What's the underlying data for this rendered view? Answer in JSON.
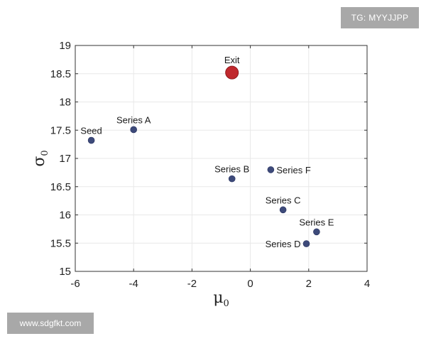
{
  "watermarks": {
    "top_right": "TG: MYYJJPP",
    "bottom_left": "www.sdgfkt.com"
  },
  "chart_data": {
    "type": "scatter",
    "xlabel": "μ",
    "xlabel_sub": "0",
    "ylabel": "σ",
    "ylabel_sub": "0",
    "xlim": [
      -6,
      4
    ],
    "ylim": [
      15,
      19
    ],
    "xticks": [
      -6,
      -4,
      -2,
      0,
      2,
      4
    ],
    "yticks": [
      15,
      15.5,
      16,
      16.5,
      17,
      17.5,
      18,
      18.5,
      19
    ],
    "xtick_labels": [
      "-6",
      "-4",
      "-2",
      "0",
      "2",
      "4"
    ],
    "ytick_labels": [
      "15",
      "15.5",
      "16",
      "16.5",
      "17",
      "17.5",
      "18",
      "18.5",
      "19"
    ],
    "grid": true,
    "colors": {
      "point": "#3d4a7a",
      "highlight": "#c0282d",
      "grid": "#e8e8e8",
      "axis": "#333333"
    },
    "points": [
      {
        "label": "Seed",
        "x": -5.45,
        "y": 17.32,
        "label_pos": "above"
      },
      {
        "label": "Series A",
        "x": -4.0,
        "y": 17.51,
        "label_pos": "above"
      },
      {
        "label": "Series B",
        "x": -0.63,
        "y": 16.64,
        "label_pos": "above"
      },
      {
        "label": "Series F",
        "x": 0.7,
        "y": 16.8,
        "label_pos": "right"
      },
      {
        "label": "Series C",
        "x": 1.12,
        "y": 16.09,
        "label_pos": "above"
      },
      {
        "label": "Series E",
        "x": 2.27,
        "y": 15.7,
        "label_pos": "above"
      },
      {
        "label": "Series D",
        "x": 1.92,
        "y": 15.49,
        "label_pos": "left"
      },
      {
        "label": "Exit",
        "x": -0.63,
        "y": 18.52,
        "label_pos": "above",
        "highlight": true
      }
    ]
  }
}
